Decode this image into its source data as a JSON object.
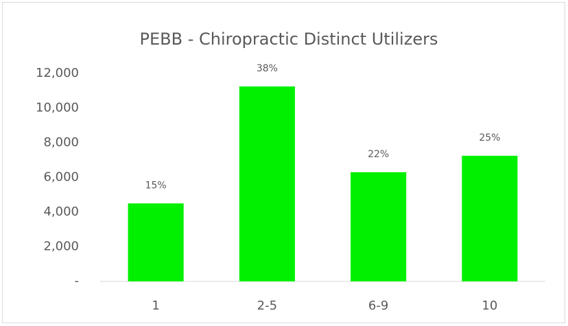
{
  "chart_data": {
    "type": "bar",
    "title": "PEBB - Chiropractic Distinct Utilizers",
    "categories": [
      "1",
      "2-5",
      "6-9",
      "10"
    ],
    "values": [
      4500,
      11250,
      6300,
      7250
    ],
    "annotations": [
      "15%",
      "38%",
      "22%",
      "25%"
    ],
    "color": "#00f000",
    "ylim": [
      0,
      12000
    ],
    "yticks": [
      {
        "value": 0,
        "label": "-"
      },
      {
        "value": 2000,
        "label": "2,000"
      },
      {
        "value": 4000,
        "label": "4,000"
      },
      {
        "value": 6000,
        "label": "6,000"
      },
      {
        "value": 8000,
        "label": "8,000"
      },
      {
        "value": 10000,
        "label": "10,000"
      },
      {
        "value": 12000,
        "label": "12,000"
      }
    ],
    "grid": false
  }
}
